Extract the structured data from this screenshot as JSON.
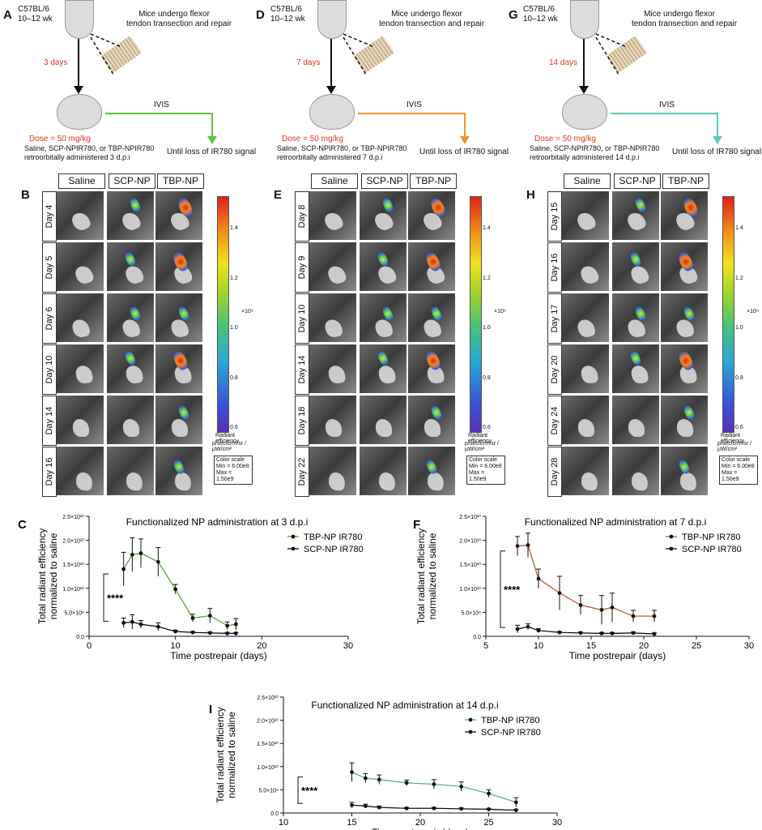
{
  "schemas": [
    {
      "letter": "A",
      "strain": "C57BL/6",
      "age": "10–12 wk",
      "procedure_l1": "Mice undergo flexor",
      "procedure_l2": "tendon transection and repair",
      "days": "3 days",
      "ivis": "IVIS",
      "dose": "Dose = 50 mg/kg",
      "admin_l1": "Saline, SCP-NPIR780, or TBP-NPIR780",
      "admin_l2": "retroorbitally administered 3 d.p.i",
      "until": "Until loss of IR780 signal",
      "arrow_color": "#5ec43b"
    },
    {
      "letter": "D",
      "strain": "C57BL/6",
      "age": "10–12 wk",
      "procedure_l1": "Mice undergo flexor",
      "procedure_l2": "tendon transection and repair",
      "days": "7 days",
      "ivis": "IVIS",
      "dose": "Dose = 50 mg/kg",
      "admin_l1": "Saline, SCP-NPIR780, or TBP-NPIR780",
      "admin_l2": "retroorbitally administered 7 d.p.i",
      "until": "Until loss of IR780 signal",
      "arrow_color": "#f0922a"
    },
    {
      "letter": "G",
      "strain": "C57BL/6",
      "age": "10–12 wk",
      "procedure_l1": "Mice undergo flexor",
      "procedure_l2": "tendon transection and repair",
      "days": "14 days",
      "ivis": "IVIS",
      "dose": "Dose = 50 mg/kg",
      "admin_l1": "Saline, SCP-NPIR780, or TBP-NPIR780",
      "admin_l2": "retroorbitally administered 14 d.p.i",
      "until": "Until loss of IR780 signal",
      "arrow_color": "#5ec8b8"
    }
  ],
  "image_grids": [
    {
      "letter": "B",
      "columns": [
        "Saline",
        "SCP-NP",
        "TBP-NP"
      ],
      "rows": [
        "Day 4",
        "Day 5",
        "Day 6",
        "Day 10",
        "Day 14",
        "Day 16"
      ]
    },
    {
      "letter": "E",
      "columns": [
        "Saline",
        "SCP-NP",
        "TBP-NP"
      ],
      "rows": [
        "Day 8",
        "Day 9",
        "Day 10",
        "Day 14",
        "Day 18",
        "Day 22"
      ]
    },
    {
      "letter": "H",
      "columns": [
        "Saline",
        "SCP-NP",
        "TBP-NP"
      ],
      "rows": [
        "Day 15",
        "Day 16",
        "Day 17",
        "Day 20",
        "Day 24",
        "Day 28"
      ]
    }
  ],
  "colorbar": {
    "ticks": [
      "1.4",
      "1.2",
      "1.0",
      "0.8",
      "0.6"
    ],
    "exponent": "×10⁹",
    "label": "Radiant efficiency",
    "units": "p/sec/cm²/sr / µW/cm²",
    "scale_title": "Color scale",
    "min": "Min = 6.00e8",
    "max": "Max = 1.50e9"
  },
  "chart_data": [
    {
      "letter": "C",
      "type": "line",
      "title": "Functionalized NP administration at 3 d.p.i",
      "xlabel": "Time postrepair (days)",
      "ylabel": "Total radiant efficiency normalized to saline",
      "xlim": [
        0,
        30
      ],
      "ylim": [
        0,
        25000000000.0
      ],
      "xticks": [
        "0",
        "10",
        "20",
        "30"
      ],
      "yticks": [
        "0.0",
        "5.0×10⁹",
        "1.0×10¹⁰",
        "1.5×10¹⁰",
        "2.0×10¹⁰",
        "2.5×10¹⁰"
      ],
      "significance": "****",
      "series": [
        {
          "name": "TBP-NP IR780",
          "color": "#5aa832",
          "x": [
            4,
            5,
            6,
            8,
            10,
            12,
            14,
            16,
            17
          ],
          "y": [
            14000000000.0,
            17000000000.0,
            17300000000.0,
            15500000000.0,
            9800000000.0,
            3800000000.0,
            4300000000.0,
            2200000000.0,
            2500000000.0
          ],
          "err": [
            3500000000.0,
            3500000000.0,
            3000000000.0,
            3000000000.0,
            1000000000.0,
            800000000.0,
            1500000000.0,
            800000000.0,
            1200000000.0
          ]
        },
        {
          "name": "SCP-NP IR780",
          "color": "#111111",
          "x": [
            4,
            5,
            6,
            8,
            10,
            12,
            14,
            16,
            17
          ],
          "y": [
            2800000000.0,
            3000000000.0,
            2500000000.0,
            2000000000.0,
            1000000000.0,
            800000000.0,
            700000000.0,
            600000000.0,
            600000000.0
          ],
          "err": [
            1000000000.0,
            1500000000.0,
            800000000.0,
            800000000.0,
            300000000.0,
            200000000.0,
            200000000.0,
            200000000.0,
            200000000.0
          ]
        }
      ]
    },
    {
      "letter": "F",
      "type": "line",
      "title": "Functionalized NP administration at 7 d.p.i",
      "xlabel": "Time postrepair (days)",
      "ylabel": "Total radiant efficiency normalized to saline",
      "xlim": [
        5,
        30
      ],
      "ylim": [
        0,
        25000000000.0
      ],
      "xticks": [
        "5",
        "10",
        "15",
        "20",
        "25",
        "30"
      ],
      "yticks": [
        "0.0",
        "5.0×10⁹",
        "1.0×10¹⁰",
        "1.5×10¹⁰",
        "2.0×10¹⁰",
        "2.5×10¹⁰"
      ],
      "significance": "****",
      "series": [
        {
          "name": "TBP-NP IR780",
          "color": "#c05a32",
          "x": [
            8,
            9,
            10,
            12,
            14,
            16,
            17,
            19,
            21
          ],
          "y": [
            18800000000.0,
            19000000000.0,
            12000000000.0,
            9000000000.0,
            6500000000.0,
            5500000000.0,
            6000000000.0,
            4200000000.0,
            4200000000.0
          ],
          "err": [
            2000000000.0,
            2500000000.0,
            2000000000.0,
            3500000000.0,
            2000000000.0,
            3000000000.0,
            3000000000.0,
            1200000000.0,
            1200000000.0
          ]
        },
        {
          "name": "SCP-NP IR780",
          "color": "#111111",
          "x": [
            8,
            9,
            10,
            12,
            14,
            16,
            17,
            19,
            21
          ],
          "y": [
            1500000000.0,
            2000000000.0,
            1200000000.0,
            800000000.0,
            700000000.0,
            600000000.0,
            600000000.0,
            700000000.0,
            500000000.0
          ],
          "err": [
            800000000.0,
            600000000.0,
            400000000.0,
            200000000.0,
            200000000.0,
            200000000.0,
            200000000.0,
            200000000.0,
            200000000.0
          ]
        }
      ]
    },
    {
      "letter": "I",
      "type": "line",
      "title": "Functionalized NP administration at 14 d.p.i",
      "xlabel": "Time postrepair (days)",
      "ylabel": "Total radiant efficiency normalized to saline",
      "xlim": [
        10,
        30
      ],
      "ylim": [
        0,
        25000000000.0
      ],
      "xticks": [
        "10",
        "15",
        "20",
        "25",
        "30"
      ],
      "yticks": [
        "0.0",
        "5.0×10⁹",
        "1.0×10¹⁰",
        "1.5×10¹⁰",
        "2.0×10¹⁰",
        "2.5×10¹⁰"
      ],
      "significance": "****",
      "series": [
        {
          "name": "TBP-NP IR780",
          "color": "#4fb3a6",
          "x": [
            15,
            16,
            17,
            19,
            21,
            23,
            25,
            27
          ],
          "y": [
            8800000000.0,
            7500000000.0,
            7200000000.0,
            6500000000.0,
            6200000000.0,
            5700000000.0,
            4200000000.0,
            2300000000.0
          ],
          "err": [
            2000000000.0,
            1000000000.0,
            1000000000.0,
            600000000.0,
            1000000000.0,
            1000000000.0,
            800000000.0,
            1000000000.0
          ]
        },
        {
          "name": "SCP-NP IR780",
          "color": "#111111",
          "x": [
            15,
            16,
            17,
            19,
            21,
            23,
            25,
            27
          ],
          "y": [
            1700000000.0,
            1500000000.0,
            1200000000.0,
            1000000000.0,
            1000000000.0,
            900000000.0,
            800000000.0,
            600000000.0
          ],
          "err": [
            600000000.0,
            400000000.0,
            300000000.0,
            200000000.0,
            200000000.0,
            200000000.0,
            200000000.0,
            200000000.0
          ]
        }
      ]
    }
  ]
}
